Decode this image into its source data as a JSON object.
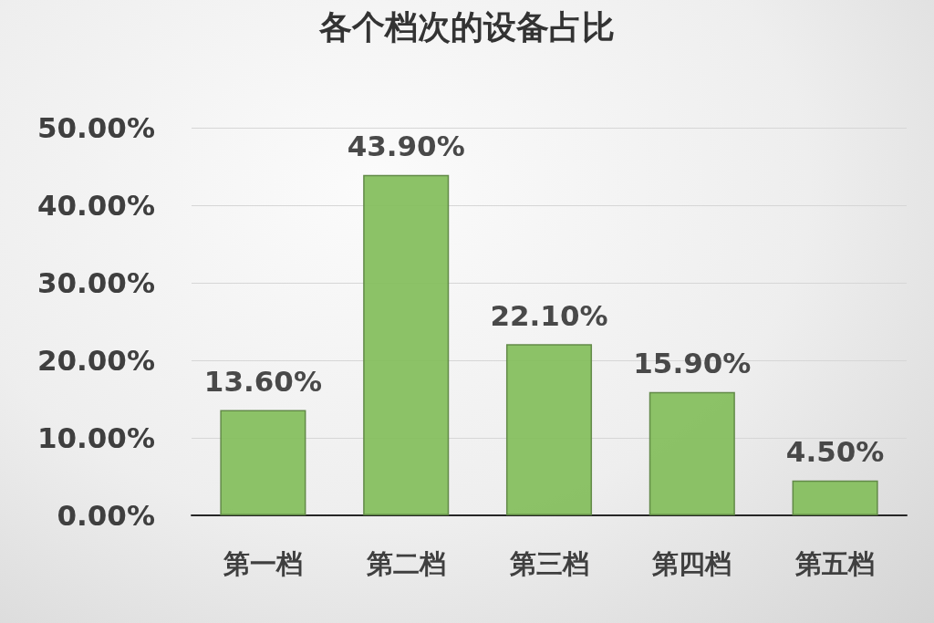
{
  "chart_data": {
    "type": "bar",
    "title": "各个档次的设备占比",
    "categories": [
      "第一档",
      "第二档",
      "第三档",
      "第四档",
      "第五档"
    ],
    "values": [
      13.6,
      43.9,
      22.1,
      15.9,
      4.5
    ],
    "color": "#86bf5f",
    "value_labels": [
      "13.60%",
      "43.90%",
      "22.10%",
      "15.90%",
      "4.50%"
    ],
    "ylim": [
      0,
      50
    ],
    "yticks": [
      {
        "value": 0,
        "label": "0.00%"
      },
      {
        "value": 10,
        "label": "10.00%"
      },
      {
        "value": 20,
        "label": "20.00%"
      },
      {
        "value": 30,
        "label": "30.00%"
      },
      {
        "value": 40,
        "label": "40.00%"
      },
      {
        "value": 50,
        "label": "50.00%"
      }
    ],
    "grid": "y"
  }
}
